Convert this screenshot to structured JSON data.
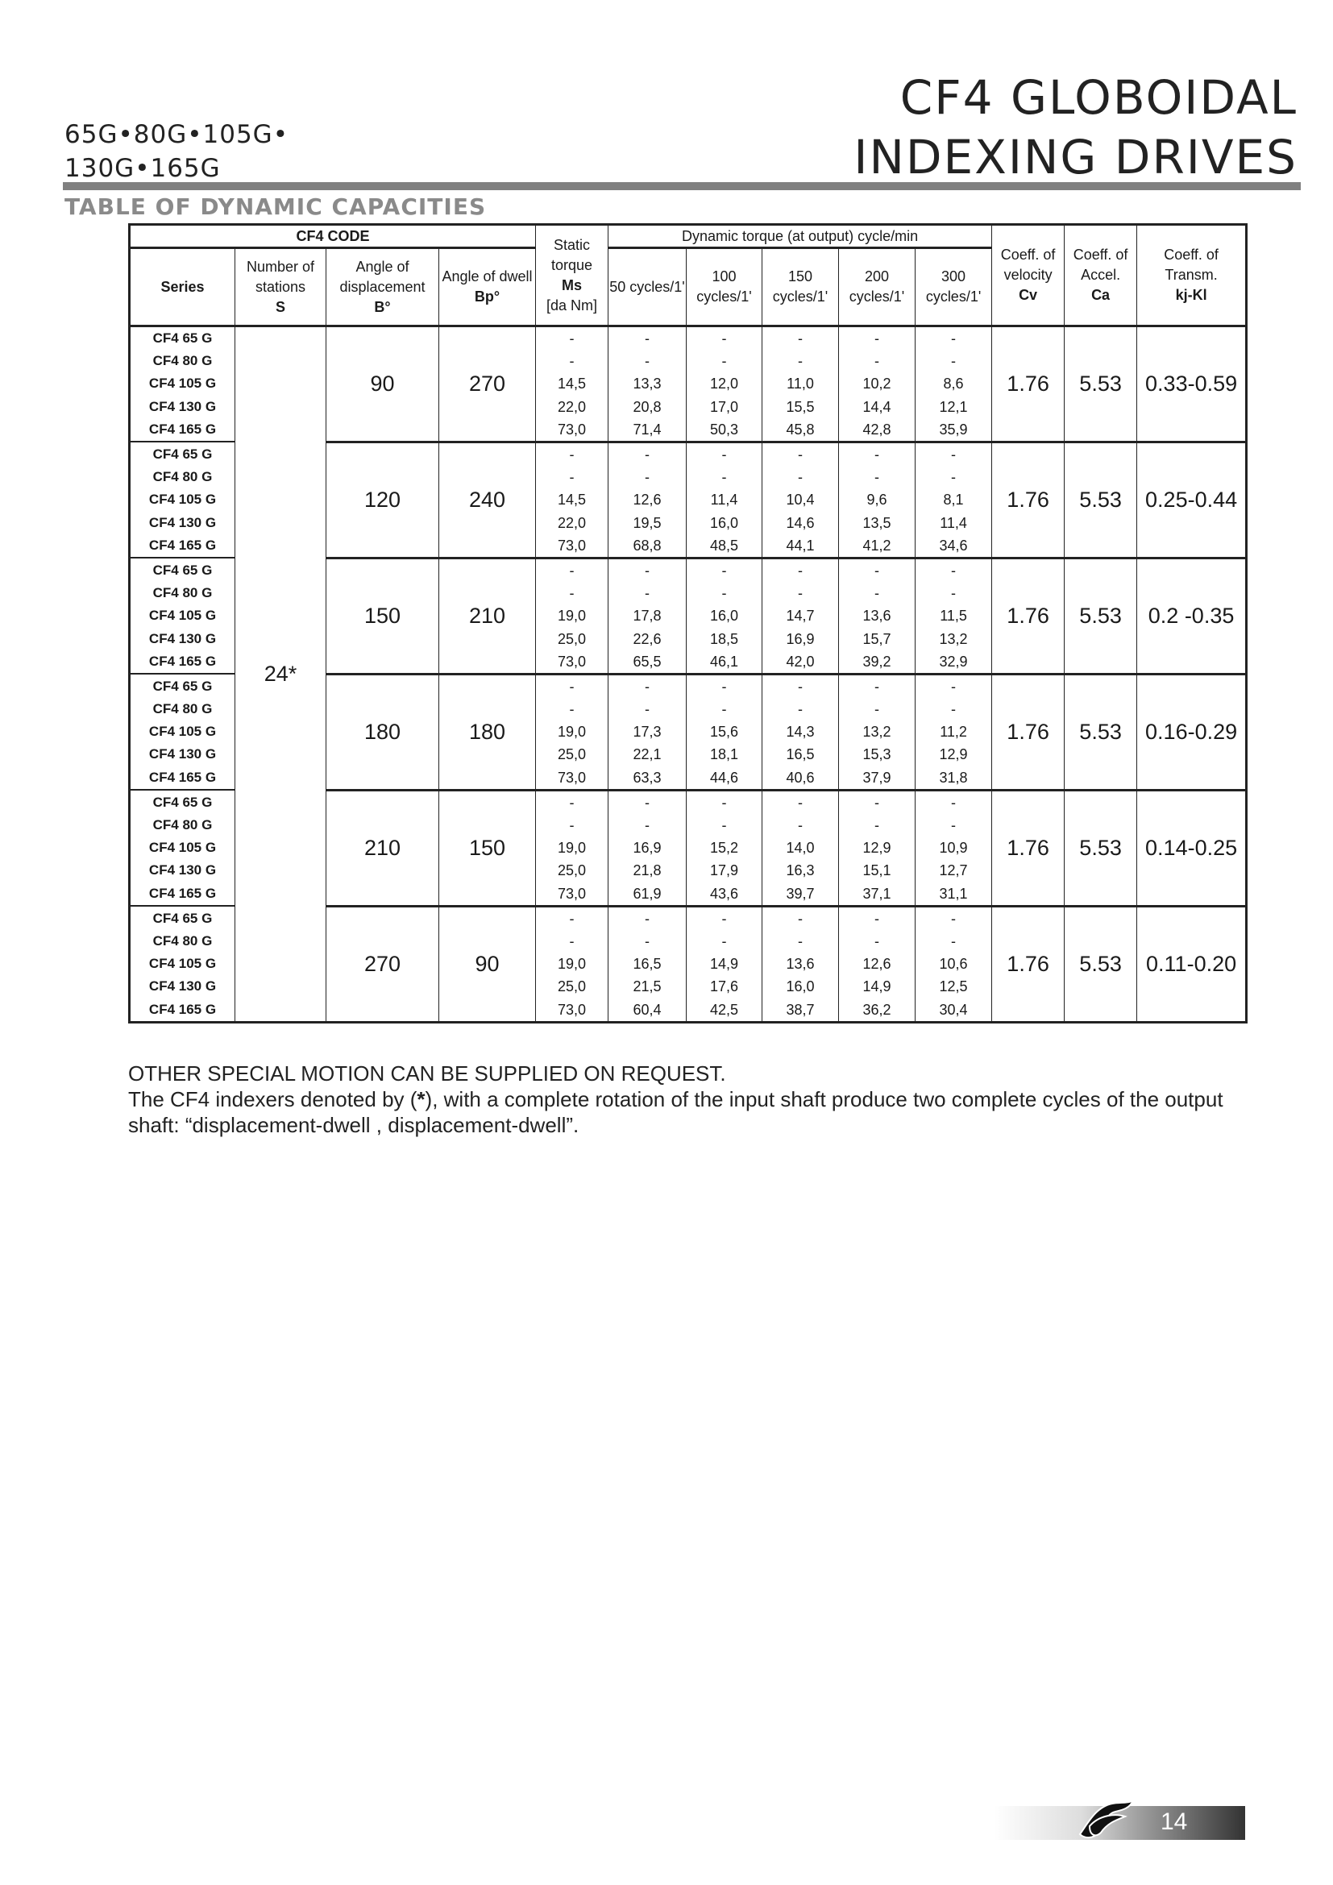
{
  "header": {
    "title_line1": "CF4 GLOBOIDAL",
    "title_line2": "INDEXING DRIVES",
    "models_line1": "65G•80G•105G•",
    "models_line2": "130G•165G",
    "subtitle": "TABLE OF DYNAMIC CAPACITIES"
  },
  "table": {
    "headers": {
      "cf4_code": "CF4 CODE",
      "series": "Series",
      "stations": "Number of stations",
      "stations_sym": "S",
      "displacement": "Angle of displacement",
      "displacement_sym": "B°",
      "dwell": "Angle of dwell",
      "dwell_sym": "Bp°",
      "static": "Static torque",
      "static_sym": "Ms",
      "static_unit": "[da Nm]",
      "dynamic": "Dynamic torque (at output) cycle/min",
      "speeds": [
        "50 cycles/1'",
        "100 cycles/1'",
        "150 cycles/1'",
        "200 cycles/1'",
        "300 cycles/1'"
      ],
      "cv": "Coeff. of velocity",
      "cv_sym": "Cv",
      "ca": "Coeff. of Accel.",
      "ca_sym": "Ca",
      "kj": "Coeff. of Transm.",
      "kj_sym": "kj-Kl"
    },
    "stations": "24*",
    "series": [
      "CF4 65 G",
      "CF4 80 G",
      "CF4 105 G",
      "CF4 130 G",
      "CF4 165 G"
    ],
    "groups": [
      {
        "displacement": "90",
        "dwell": "270",
        "cv": "1.76",
        "ca": "5.53",
        "kj": "0.33-0.59",
        "rows": [
          [
            "-",
            "-",
            "-",
            "-",
            "-",
            "-"
          ],
          [
            "-",
            "-",
            "-",
            "-",
            "-",
            "-"
          ],
          [
            "14,5",
            "13,3",
            "12,0",
            "11,0",
            "10,2",
            "8,6"
          ],
          [
            "22,0",
            "20,8",
            "17,0",
            "15,5",
            "14,4",
            "12,1"
          ],
          [
            "73,0",
            "71,4",
            "50,3",
            "45,8",
            "42,8",
            "35,9"
          ]
        ]
      },
      {
        "displacement": "120",
        "dwell": "240",
        "cv": "1.76",
        "ca": "5.53",
        "kj": "0.25-0.44",
        "rows": [
          [
            "-",
            "-",
            "-",
            "-",
            "-",
            "-"
          ],
          [
            "-",
            "-",
            "-",
            "-",
            "-",
            "-"
          ],
          [
            "14,5",
            "12,6",
            "11,4",
            "10,4",
            "9,6",
            "8,1"
          ],
          [
            "22,0",
            "19,5",
            "16,0",
            "14,6",
            "13,5",
            "11,4"
          ],
          [
            "73,0",
            "68,8",
            "48,5",
            "44,1",
            "41,2",
            "34,6"
          ]
        ]
      },
      {
        "displacement": "150",
        "dwell": "210",
        "cv": "1.76",
        "ca": "5.53",
        "kj": "0.2 -0.35",
        "rows": [
          [
            "-",
            "-",
            "-",
            "-",
            "-",
            "-"
          ],
          [
            "-",
            "-",
            "-",
            "-",
            "-",
            "-"
          ],
          [
            "19,0",
            "17,8",
            "16,0",
            "14,7",
            "13,6",
            "11,5"
          ],
          [
            "25,0",
            "22,6",
            "18,5",
            "16,9",
            "15,7",
            "13,2"
          ],
          [
            "73,0",
            "65,5",
            "46,1",
            "42,0",
            "39,2",
            "32,9"
          ]
        ]
      },
      {
        "displacement": "180",
        "dwell": "180",
        "cv": "1.76",
        "ca": "5.53",
        "kj": "0.16-0.29",
        "rows": [
          [
            "-",
            "-",
            "-",
            "-",
            "-",
            "-"
          ],
          [
            "-",
            "-",
            "-",
            "-",
            "-",
            "-"
          ],
          [
            "19,0",
            "17,3",
            "15,6",
            "14,3",
            "13,2",
            "11,2"
          ],
          [
            "25,0",
            "22,1",
            "18,1",
            "16,5",
            "15,3",
            "12,9"
          ],
          [
            "73,0",
            "63,3",
            "44,6",
            "40,6",
            "37,9",
            "31,8"
          ]
        ]
      },
      {
        "displacement": "210",
        "dwell": "150",
        "cv": "1.76",
        "ca": "5.53",
        "kj": "0.14-0.25",
        "rows": [
          [
            "-",
            "-",
            "-",
            "-",
            "-",
            "-"
          ],
          [
            "-",
            "-",
            "-",
            "-",
            "-",
            "-"
          ],
          [
            "19,0",
            "16,9",
            "15,2",
            "14,0",
            "12,9",
            "10,9"
          ],
          [
            "25,0",
            "21,8",
            "17,9",
            "16,3",
            "15,1",
            "12,7"
          ],
          [
            "73,0",
            "61,9",
            "43,6",
            "39,7",
            "37,1",
            "31,1"
          ]
        ]
      },
      {
        "displacement": "270",
        "dwell": "90",
        "cv": "1.76",
        "ca": "5.53",
        "kj": "0.11-0.20",
        "rows": [
          [
            "-",
            "-",
            "-",
            "-",
            "-",
            "-"
          ],
          [
            "-",
            "-",
            "-",
            "-",
            "-",
            "-"
          ],
          [
            "19,0",
            "16,5",
            "14,9",
            "13,6",
            "12,6",
            "10,6"
          ],
          [
            "25,0",
            "21,5",
            "17,6",
            "16,0",
            "14,9",
            "12,5"
          ],
          [
            "73,0",
            "60,4",
            "42,5",
            "38,7",
            "36,2",
            "30,4"
          ]
        ]
      }
    ]
  },
  "notes": {
    "line1": "OTHER SPECIAL MOTION CAN BE SUPPLIED ON REQUEST.",
    "line2_pre": "The CF4 indexers denoted by (",
    "line2_star": "*",
    "line2_post": "), with a complete rotation of the input shaft produce two complete cycles of the output shaft: “displacement-dwell , displacement-dwell”."
  },
  "footer": {
    "page_number": "14",
    "logo_icon": "company-logo-icon"
  }
}
